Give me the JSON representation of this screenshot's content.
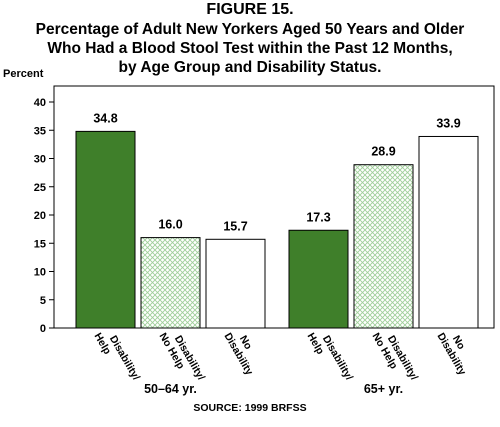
{
  "figure_label": "FIGURE 15.",
  "title_lines": [
    "Percentage of Adult New Yorkers Aged 50 Years and Older",
    "Who Had a Blood Stool Test within the Past 12 Months,",
    "by Age Group and Disability Status."
  ],
  "source": "SOURCE:  1999  BRFSS",
  "colors": {
    "green": "#3f7f2a",
    "hatch": "#9fcf9a",
    "outline": "#000000"
  },
  "chart_data": {
    "type": "bar",
    "ylabel": "Percent",
    "ylim": [
      0,
      40
    ],
    "yticks": [
      0,
      5,
      10,
      15,
      20,
      25,
      30,
      35,
      40
    ],
    "grid": false,
    "bar_styles": [
      "solid-green",
      "green-crosshatch",
      "white"
    ],
    "groups": [
      {
        "name": "50–64  yr.",
        "bars": [
          {
            "category": "Disability/ Help",
            "lines": [
              "Disability/",
              "Help"
            ],
            "value": 34.8,
            "label": "34.8"
          },
          {
            "category": "Disability/ No Help",
            "lines": [
              "Disability/",
              "No Help"
            ],
            "value": 16.0,
            "label": "16.0"
          },
          {
            "category": "No Disability",
            "lines": [
              "No",
              "Disability"
            ],
            "value": 15.7,
            "label": "15.7"
          }
        ]
      },
      {
        "name": "65+  yr.",
        "bars": [
          {
            "category": "Disability/ Help",
            "lines": [
              "Disability/",
              "Help"
            ],
            "value": 17.3,
            "label": "17.3"
          },
          {
            "category": "Disability/ No Help",
            "lines": [
              "Disability/",
              "No Help"
            ],
            "value": 28.9,
            "label": "28.9"
          },
          {
            "category": "No Disability",
            "lines": [
              "No",
              "Disability"
            ],
            "value": 33.9,
            "label": "33.9"
          }
        ]
      }
    ]
  }
}
